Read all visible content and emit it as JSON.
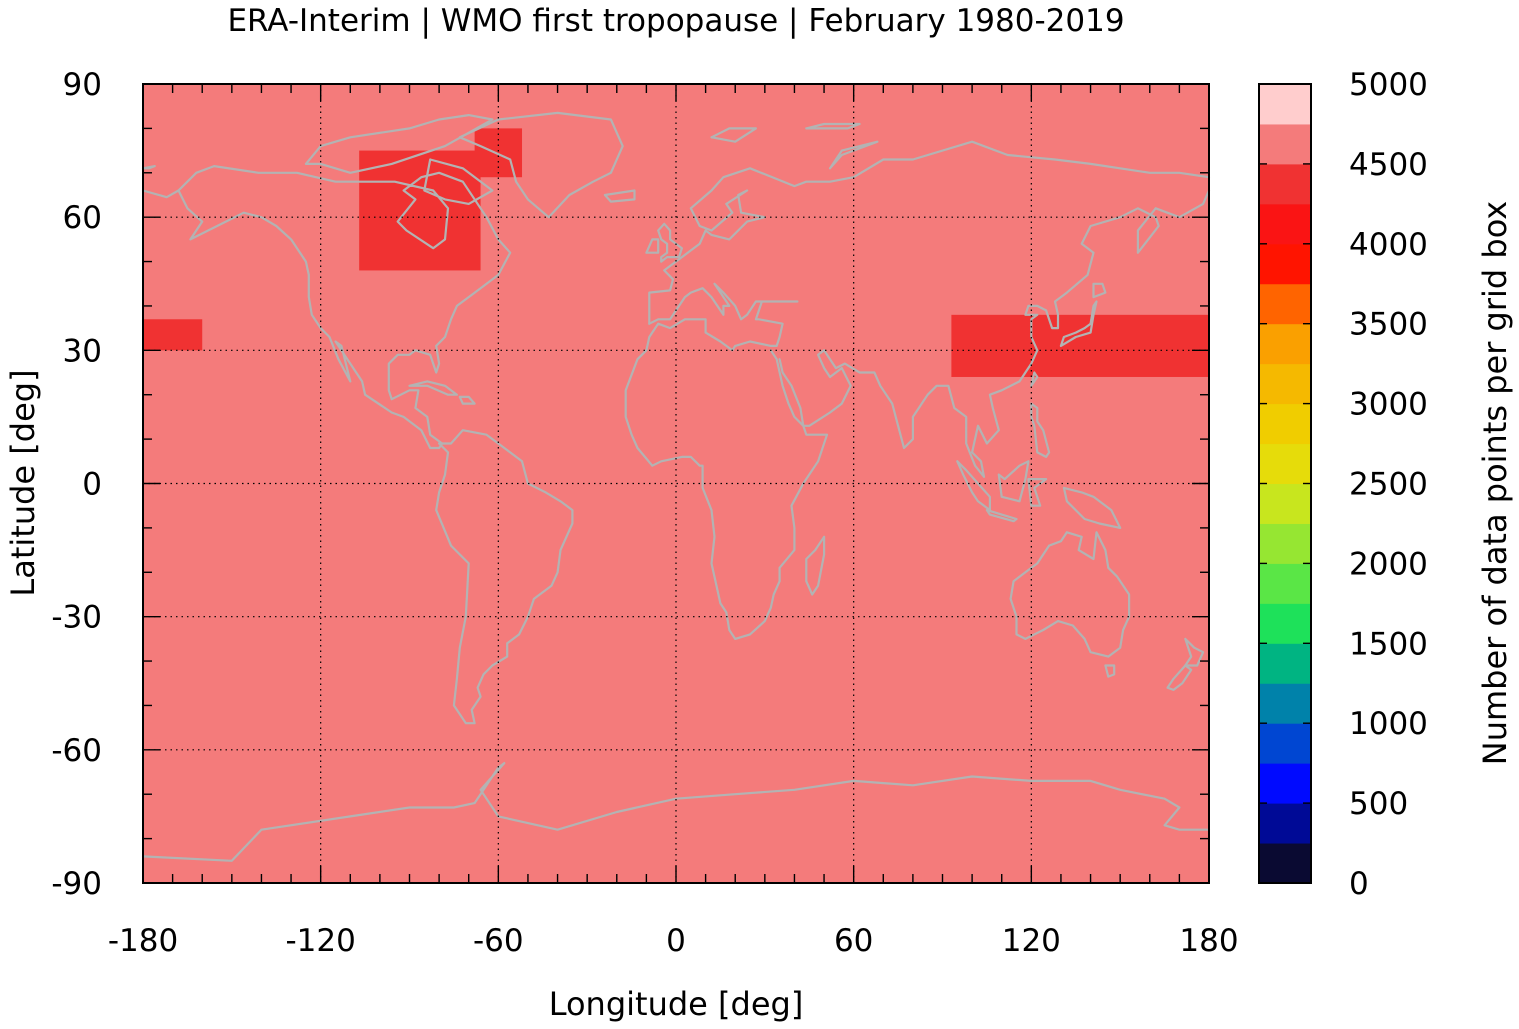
{
  "chart_data": {
    "type": "heatmap",
    "title": "ERA-Interim | WMO first tropopause | February 1980-2019",
    "xlabel": "Longitude [deg]",
    "ylabel": "Latitude [deg]",
    "xlim": [
      -180,
      180
    ],
    "ylim": [
      -90,
      90
    ],
    "x_ticks": [
      -180,
      -120,
      -60,
      0,
      60,
      120,
      180
    ],
    "y_ticks": [
      90,
      60,
      30,
      0,
      -30,
      -60,
      -90
    ],
    "x_minor_step": 10,
    "y_minor_step": 10,
    "grid": "dotted",
    "background_value_range": [
      4500,
      4750
    ],
    "background_color": "#f47b7b",
    "coastline_color": "#b3b3b3",
    "regions_4250_4500": [
      {
        "lon": [
          -180,
          -160
        ],
        "lat": [
          30,
          37
        ]
      },
      {
        "lon": [
          -107,
          -66
        ],
        "lat": [
          48,
          75
        ]
      },
      {
        "lon": [
          -68,
          -52
        ],
        "lat": [
          69,
          80
        ]
      },
      {
        "lon": [
          93,
          180
        ],
        "lat": [
          24,
          38
        ]
      }
    ],
    "colorbar": {
      "label": "Number of data points per grid box",
      "range": [
        0,
        5000
      ],
      "ticks": [
        0,
        500,
        1000,
        1500,
        2000,
        2500,
        3000,
        3500,
        4000,
        4500,
        5000
      ],
      "bin_size": 250,
      "colors": [
        "#0a0a32",
        "#000a96",
        "#000aff",
        "#0046d2",
        "#0082aa",
        "#00b482",
        "#1ee15a",
        "#5ae646",
        "#96e632",
        "#c8e61e",
        "#e6dc0a",
        "#f0cd00",
        "#f5b900",
        "#faa000",
        "#ff6400",
        "#ff1400",
        "#fa1414",
        "#f03232",
        "#f47b7b",
        "#ffcdcd"
      ]
    }
  }
}
